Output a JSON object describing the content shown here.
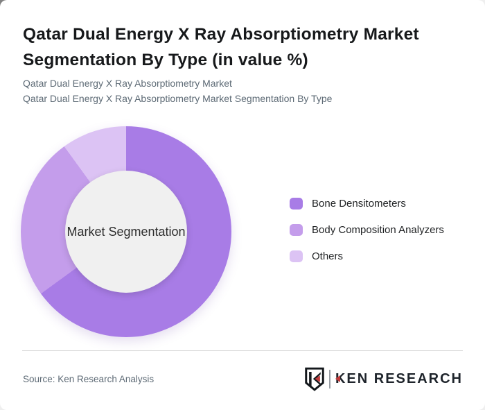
{
  "header": {
    "title": "Qatar Dual Energy X Ray Absorptiometry Market Segmentation By Type (in value %)",
    "subtitle1": "Qatar Dual Energy X Ray Absorptiometry Market",
    "subtitle2": "Qatar Dual Energy X Ray Absorptiometry Market Segmentation By Type"
  },
  "chart_data": {
    "type": "pie",
    "donut": true,
    "title": "Qatar Dual Energy X Ray Absorptiometry Market Segmentation By Type (in value %)",
    "center_label": "Market Segmentation",
    "labels": [
      "Bone Densitometers",
      "Body Composition Analyzers",
      "Others"
    ],
    "values": [
      65,
      25,
      10
    ],
    "unit": "percent",
    "colors": [
      "#a87ce6",
      "#c49deb",
      "#dcc3f4"
    ],
    "hole_color": "#f0f0f0",
    "start_angle_deg": 0,
    "legend_position": "right"
  },
  "footer": {
    "source_text": "Source: Ken Research Analysis",
    "logo_text": "KEN RESEARCH",
    "logo_red": "#c13a3a"
  }
}
